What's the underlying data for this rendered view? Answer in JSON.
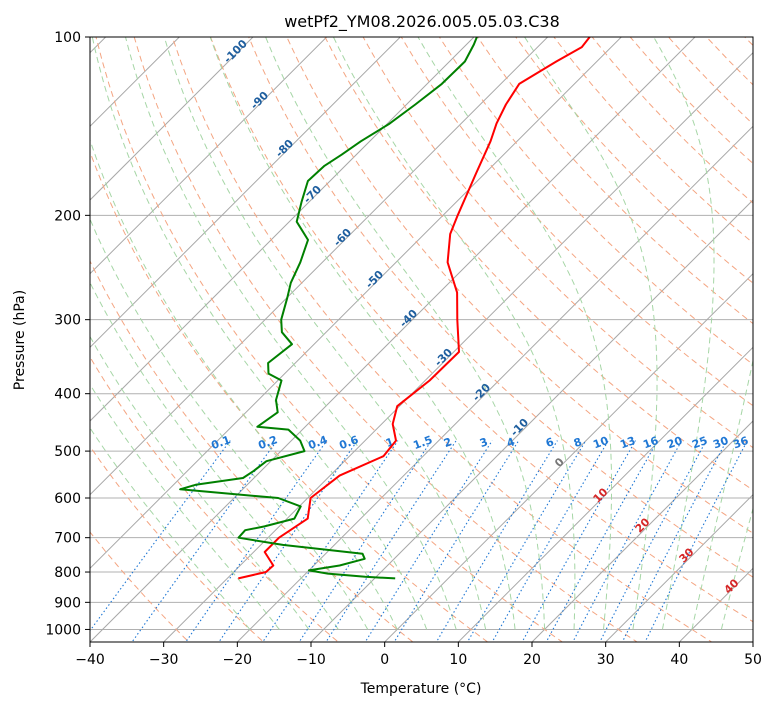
{
  "chart_data": {
    "type": "line",
    "title": "wetPf2_YM08.2026.005.05.03.C38",
    "xlabel": "Temperature (°C)",
    "ylabel": "Pressure (hPa)",
    "xlim": [
      -40,
      50
    ],
    "ylim": [
      1050,
      100
    ],
    "y_scale": "log",
    "x_ticks": [
      -40,
      -30,
      -20,
      -10,
      0,
      10,
      20,
      30,
      40,
      50
    ],
    "x_tick_labels": [
      "−40",
      "−30",
      "−20",
      "−10",
      "0",
      "10",
      "20",
      "30",
      "40",
      "50"
    ],
    "y_ticks": [
      100,
      200,
      300,
      400,
      500,
      600,
      700,
      800,
      900,
      1000
    ],
    "y_tick_labels": [
      "100",
      "200",
      "300",
      "400",
      "500",
      "600",
      "700",
      "800",
      "900",
      "1000"
    ],
    "grid": true,
    "series": [
      {
        "color": "#ff0000",
        "points": [
          [
            -28.5,
            820
          ],
          [
            -25.6,
            800
          ],
          [
            -25.5,
            780
          ],
          [
            -28.5,
            740
          ],
          [
            -28.5,
            700
          ],
          [
            -27.2,
            650
          ],
          [
            -29.6,
            600
          ],
          [
            -28.7,
            550
          ],
          [
            -25.4,
            510
          ],
          [
            -25.8,
            480
          ],
          [
            -28.5,
            450
          ],
          [
            -30.3,
            420
          ],
          [
            -29.4,
            380
          ],
          [
            -29.3,
            340
          ],
          [
            -33.9,
            300
          ],
          [
            -37.6,
            270
          ],
          [
            -43.0,
            240
          ],
          [
            -46.5,
            215
          ],
          [
            -48.0,
            200
          ],
          [
            -51.2,
            170
          ],
          [
            -53.6,
            150
          ],
          [
            -55.2,
            140
          ],
          [
            -56.5,
            130
          ],
          [
            -57.5,
            120
          ],
          [
            -55.5,
            110
          ],
          [
            -54.0,
            104
          ],
          [
            -54.3,
            100
          ]
        ]
      },
      {
        "color": "#008000",
        "points": [
          [
            -7.2,
            820
          ],
          [
            -11.5,
            815
          ],
          [
            -17.0,
            805
          ],
          [
            -20.0,
            795
          ],
          [
            -16.5,
            780
          ],
          [
            -14.0,
            760
          ],
          [
            -15.0,
            745
          ],
          [
            -27.0,
            720
          ],
          [
            -34.0,
            700
          ],
          [
            -34.1,
            680
          ],
          [
            -32.0,
            670
          ],
          [
            -29.0,
            650
          ],
          [
            -29.8,
            620
          ],
          [
            -34.0,
            600
          ],
          [
            -48.5,
            580
          ],
          [
            -47.0,
            570
          ],
          [
            -41.5,
            555
          ],
          [
            -41.0,
            540
          ],
          [
            -40.6,
            520
          ],
          [
            -36.8,
            500
          ],
          [
            -38.8,
            480
          ],
          [
            -41.9,
            460
          ],
          [
            -46.5,
            455
          ],
          [
            -45.7,
            430
          ],
          [
            -47.6,
            410
          ],
          [
            -49.5,
            380
          ],
          [
            -52.2,
            370
          ],
          [
            -53.7,
            355
          ],
          [
            -53.0,
            330
          ],
          [
            -56.0,
            315
          ],
          [
            -57.8,
            300
          ],
          [
            -60.0,
            275
          ],
          [
            -61.5,
            260
          ],
          [
            -63.0,
            240
          ],
          [
            -65.0,
            220
          ],
          [
            -69.0,
            205
          ],
          [
            -71.0,
            190
          ],
          [
            -73.0,
            175
          ],
          [
            -72.8,
            165
          ],
          [
            -72.0,
            158
          ],
          [
            -71.2,
            150
          ],
          [
            -69.7,
            140
          ],
          [
            -68.8,
            130
          ],
          [
            -68.0,
            120
          ],
          [
            -67.9,
            110
          ],
          [
            -69.0,
            103
          ],
          [
            -69.6,
            100
          ]
        ]
      }
    ],
    "dry_adiabat_labels": [
      "-100",
      "-90",
      "-80",
      "-70",
      "-60",
      "-50",
      "-40",
      "-30",
      "-20",
      "-10"
    ],
    "moist_adiabat_labels": [
      "0",
      "10",
      "20",
      "30",
      "40"
    ],
    "mixing_ratio_labels": [
      "0.1",
      "0.2",
      "0.4",
      "0.6",
      "1",
      "1.5",
      "2",
      "3",
      "4",
      "6",
      "8",
      "10",
      "13",
      "16",
      "20",
      "25",
      "30",
      "36"
    ],
    "colors": {
      "temperature": "#ff0000",
      "dewpoint": "#008000",
      "dry_adiabat": "#f4a582",
      "moist_adiabat": "#a6d6a6",
      "mixing_ratio": "#1f77d4",
      "isotherm": "#7f7f7f",
      "dry_label": "#1f5f9f",
      "moist_label": "#d62728"
    }
  }
}
